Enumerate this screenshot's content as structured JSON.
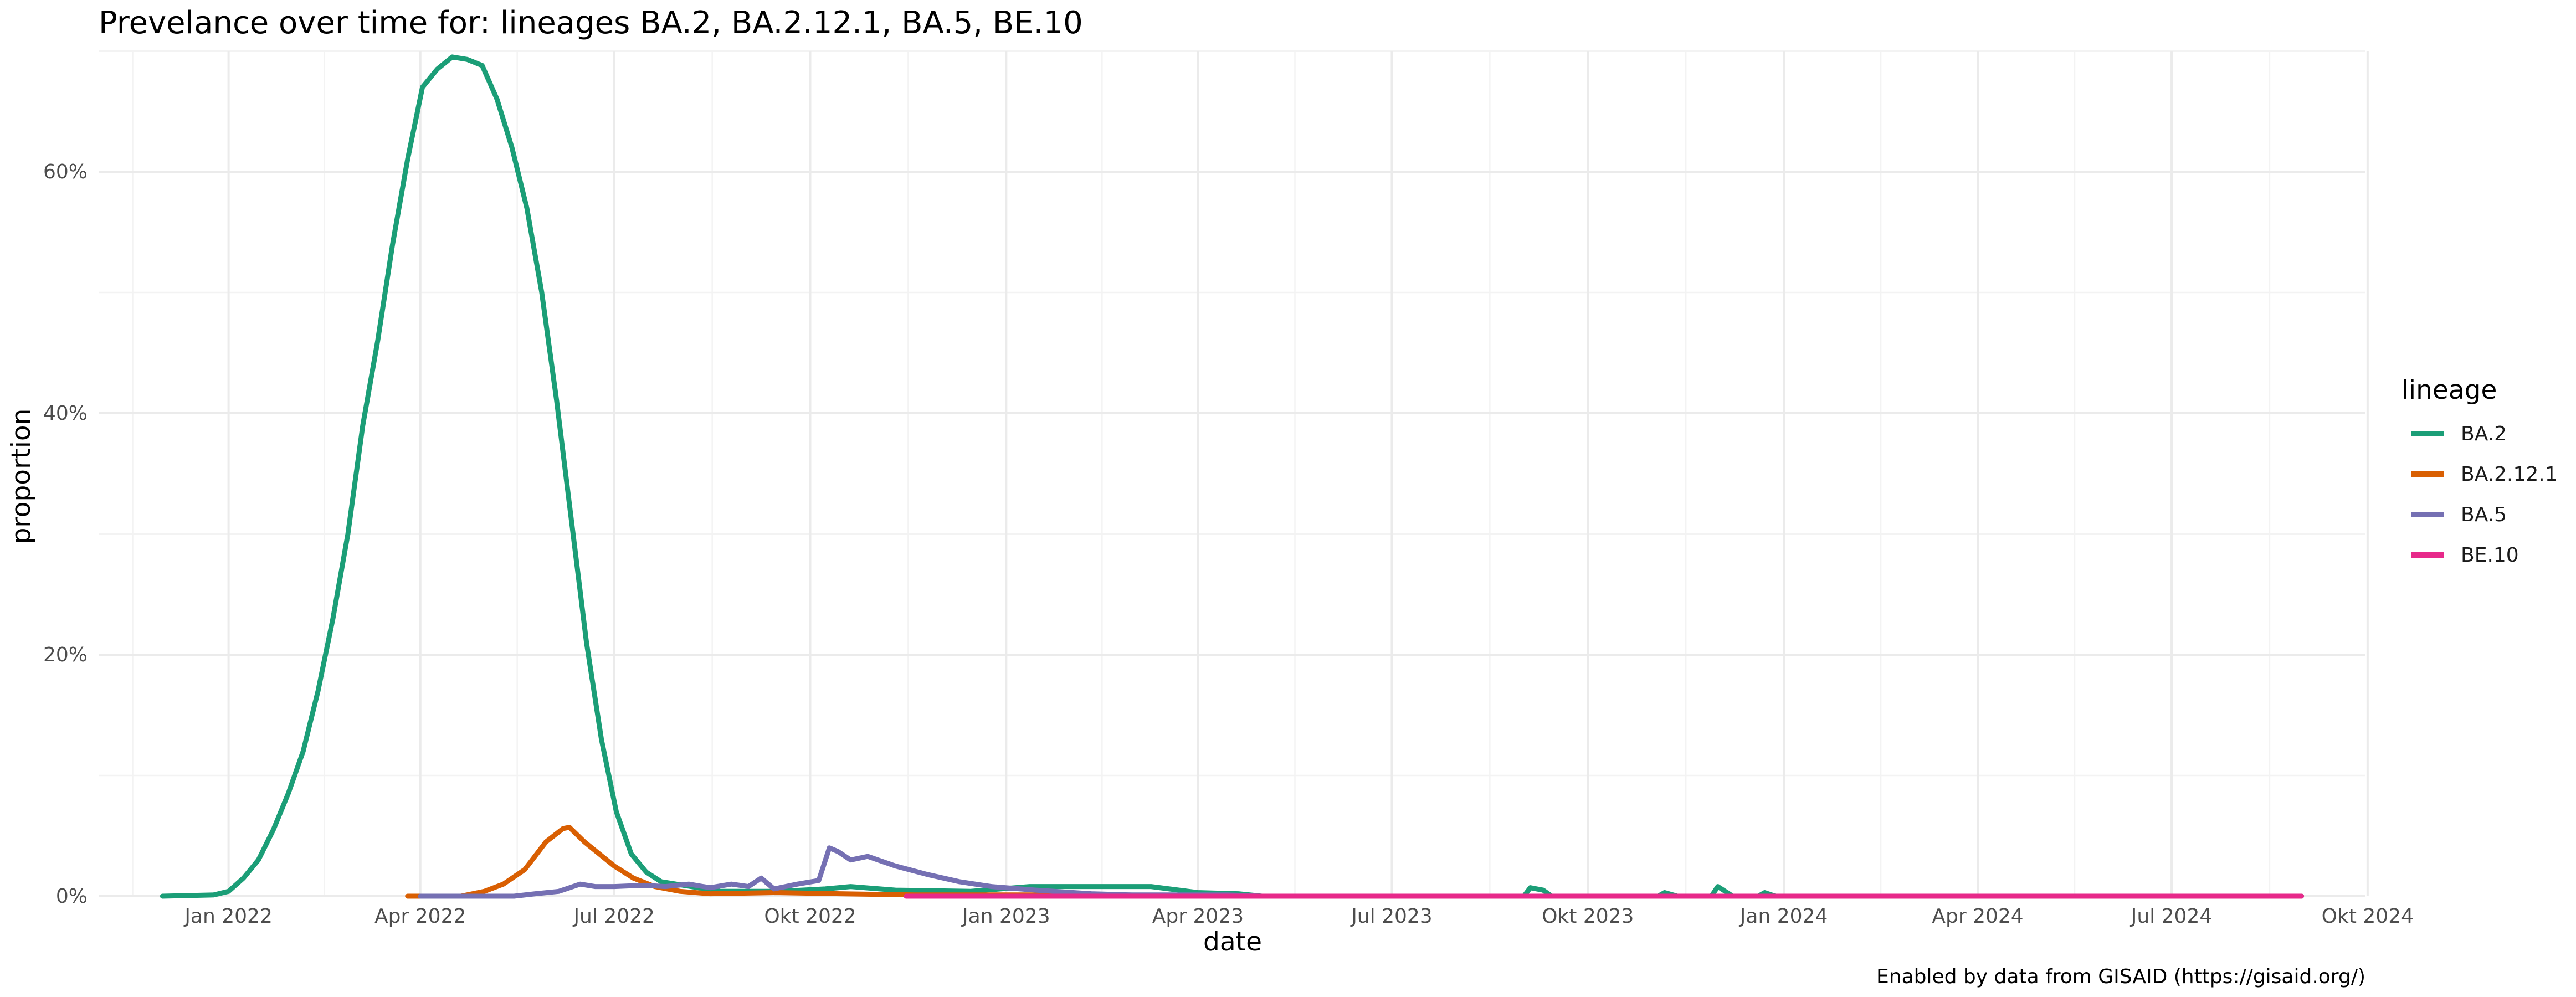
{
  "chart_data": {
    "type": "line",
    "title": "Prevelance over time for: lineages BA.2, BA.2.12.1, BA.5, BE.10",
    "xlabel": "date",
    "ylabel": "proportion",
    "caption": "Enabled by data from GISAID (https://gisaid.org/)",
    "legend_title": "lineage",
    "legend_position": "right",
    "grid": true,
    "xlim": [
      "2021-11-01",
      "2024-09-30"
    ],
    "ylim": [
      0,
      0.7
    ],
    "x_ticks": [
      {
        "date": "2022-01-01",
        "label": "Jan 2022"
      },
      {
        "date": "2022-04-01",
        "label": "Apr 2022"
      },
      {
        "date": "2022-07-01",
        "label": "Jul 2022"
      },
      {
        "date": "2022-10-01",
        "label": "Okt 2022"
      },
      {
        "date": "2023-01-01",
        "label": "Jan 2023"
      },
      {
        "date": "2023-04-01",
        "label": "Apr 2023"
      },
      {
        "date": "2023-07-01",
        "label": "Jul 2023"
      },
      {
        "date": "2023-10-01",
        "label": "Okt 2023"
      },
      {
        "date": "2024-01-01",
        "label": "Jan 2024"
      },
      {
        "date": "2024-04-01",
        "label": "Apr 2024"
      },
      {
        "date": "2024-07-01",
        "label": "Jul 2024"
      },
      {
        "date": "2024-10-01",
        "label": "Okt 2024"
      }
    ],
    "y_ticks": [
      {
        "value": 0,
        "label": "0%"
      },
      {
        "value": 0.2,
        "label": "20%"
      },
      {
        "value": 0.4,
        "label": "40%"
      },
      {
        "value": 0.6,
        "label": "60%"
      }
    ],
    "series": [
      {
        "name": "BA.2",
        "color": "#1b9e77",
        "points": [
          [
            "2021-12-01",
            0.0
          ],
          [
            "2021-12-25",
            0.001
          ],
          [
            "2022-01-01",
            0.004
          ],
          [
            "2022-01-08",
            0.015
          ],
          [
            "2022-01-15",
            0.03
          ],
          [
            "2022-01-22",
            0.055
          ],
          [
            "2022-01-29",
            0.085
          ],
          [
            "2022-02-05",
            0.12
          ],
          [
            "2022-02-12",
            0.17
          ],
          [
            "2022-02-19",
            0.23
          ],
          [
            "2022-02-26",
            0.3
          ],
          [
            "2022-03-05",
            0.39
          ],
          [
            "2022-03-12",
            0.46
          ],
          [
            "2022-03-19",
            0.54
          ],
          [
            "2022-03-26",
            0.61
          ],
          [
            "2022-04-02",
            0.67
          ],
          [
            "2022-04-09",
            0.685
          ],
          [
            "2022-04-16",
            0.695
          ],
          [
            "2022-04-23",
            0.693
          ],
          [
            "2022-04-30",
            0.688
          ],
          [
            "2022-05-07",
            0.66
          ],
          [
            "2022-05-14",
            0.62
          ],
          [
            "2022-05-21",
            0.57
          ],
          [
            "2022-05-28",
            0.5
          ],
          [
            "2022-06-04",
            0.41
          ],
          [
            "2022-06-11",
            0.31
          ],
          [
            "2022-06-18",
            0.21
          ],
          [
            "2022-06-25",
            0.13
          ],
          [
            "2022-07-02",
            0.07
          ],
          [
            "2022-07-09",
            0.035
          ],
          [
            "2022-07-16",
            0.02
          ],
          [
            "2022-07-23",
            0.012
          ],
          [
            "2022-08-06",
            0.008
          ],
          [
            "2022-08-20",
            0.004
          ],
          [
            "2022-09-17",
            0.004
          ],
          [
            "2022-10-08",
            0.006
          ],
          [
            "2022-10-20",
            0.008
          ],
          [
            "2022-11-10",
            0.005
          ],
          [
            "2022-12-15",
            0.004
          ],
          [
            "2023-01-12",
            0.008
          ],
          [
            "2023-02-20",
            0.008
          ],
          [
            "2023-03-10",
            0.008
          ],
          [
            "2023-04-01",
            0.003
          ],
          [
            "2023-04-20",
            0.002
          ],
          [
            "2023-05-01",
            0.0
          ],
          [
            "2023-09-01",
            0.0
          ],
          [
            "2023-09-04",
            0.007
          ],
          [
            "2023-09-10",
            0.005
          ],
          [
            "2023-09-14",
            0.0
          ],
          [
            "2023-11-03",
            0.0
          ],
          [
            "2023-11-06",
            0.003
          ],
          [
            "2023-11-12",
            0.0
          ],
          [
            "2023-11-28",
            0.0
          ],
          [
            "2023-12-01",
            0.008
          ],
          [
            "2023-12-08",
            0.0
          ],
          [
            "2023-12-20",
            0.0
          ],
          [
            "2023-12-23",
            0.003
          ],
          [
            "2023-12-28",
            0.0
          ],
          [
            "2024-08-31",
            0.0
          ]
        ]
      },
      {
        "name": "BA.2.12.1",
        "color": "#d95f02",
        "points": [
          [
            "2022-03-26",
            0.0
          ],
          [
            "2022-04-20",
            0.0
          ],
          [
            "2022-05-01",
            0.004
          ],
          [
            "2022-05-10",
            0.01
          ],
          [
            "2022-05-20",
            0.022
          ],
          [
            "2022-05-30",
            0.045
          ],
          [
            "2022-06-07",
            0.056
          ],
          [
            "2022-06-10",
            0.057
          ],
          [
            "2022-06-17",
            0.045
          ],
          [
            "2022-06-24",
            0.035
          ],
          [
            "2022-07-01",
            0.025
          ],
          [
            "2022-07-10",
            0.015
          ],
          [
            "2022-07-20",
            0.008
          ],
          [
            "2022-08-01",
            0.004
          ],
          [
            "2022-08-15",
            0.002
          ],
          [
            "2022-09-15",
            0.003
          ],
          [
            "2022-10-15",
            0.002
          ],
          [
            "2022-11-20",
            0.001
          ],
          [
            "2022-12-20",
            0.001
          ],
          [
            "2023-01-15",
            0.001
          ],
          [
            "2023-02-15",
            0.0
          ],
          [
            "2023-03-30",
            0.0
          ]
        ]
      },
      {
        "name": "BA.5",
        "color": "#7570b3",
        "points": [
          [
            "2022-04-01",
            0.0
          ],
          [
            "2022-05-15",
            0.0
          ],
          [
            "2022-05-25",
            0.002
          ],
          [
            "2022-06-05",
            0.004
          ],
          [
            "2022-06-15",
            0.01
          ],
          [
            "2022-06-22",
            0.008
          ],
          [
            "2022-07-01",
            0.008
          ],
          [
            "2022-07-15",
            0.009
          ],
          [
            "2022-07-25",
            0.008
          ],
          [
            "2022-08-05",
            0.01
          ],
          [
            "2022-08-15",
            0.007
          ],
          [
            "2022-08-25",
            0.01
          ],
          [
            "2022-09-02",
            0.008
          ],
          [
            "2022-09-08",
            0.015
          ],
          [
            "2022-09-14",
            0.006
          ],
          [
            "2022-09-25",
            0.01
          ],
          [
            "2022-10-05",
            0.013
          ],
          [
            "2022-10-10",
            0.04
          ],
          [
            "2022-10-14",
            0.037
          ],
          [
            "2022-10-20",
            0.03
          ],
          [
            "2022-10-28",
            0.033
          ],
          [
            "2022-11-10",
            0.025
          ],
          [
            "2022-11-25",
            0.018
          ],
          [
            "2022-12-10",
            0.012
          ],
          [
            "2022-12-25",
            0.008
          ],
          [
            "2023-01-15",
            0.005
          ],
          [
            "2023-02-10",
            0.002
          ],
          [
            "2023-03-01",
            0.001
          ],
          [
            "2023-04-15",
            0.001
          ],
          [
            "2023-05-01",
            0.0
          ]
        ]
      },
      {
        "name": "BE.10",
        "color": "#e7298a",
        "points": [
          [
            "2022-11-15",
            0.0
          ],
          [
            "2024-08-31",
            0.0
          ]
        ]
      }
    ]
  }
}
